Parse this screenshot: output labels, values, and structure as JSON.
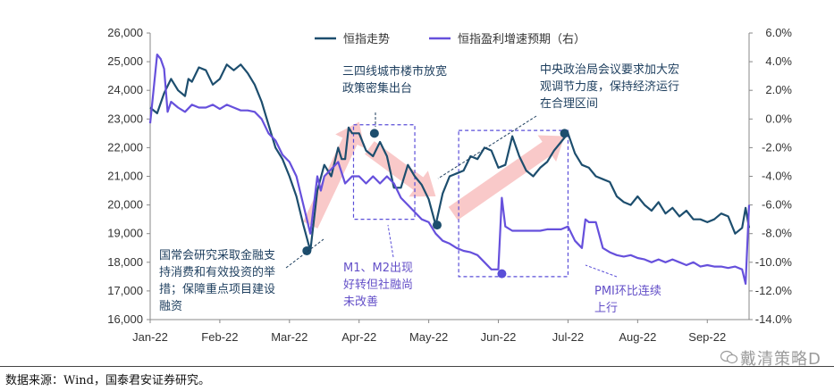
{
  "chart_data": {
    "type": "line",
    "title": "",
    "legend": {
      "placement": "top-right"
    },
    "x_ticks": [
      "Jan-22",
      "Feb-22",
      "Mar-22",
      "Apr-22",
      "May-22",
      "Jun-22",
      "Jul-22",
      "Aug-22",
      "Sep-22"
    ],
    "y_left": {
      "ticks": [
        "26,000",
        "25,000",
        "24,000",
        "23,000",
        "22,000",
        "21,000",
        "20,000",
        "19,000",
        "18,000",
        "17,000",
        "16,000"
      ],
      "range": [
        16000,
        26000
      ]
    },
    "y_right": {
      "ticks": [
        "6.0%",
        "4.0%",
        "2.0%",
        "0.0%",
        "-2.0%",
        "-4.0%",
        "-6.0%",
        "-8.0%",
        "-10.0%",
        "-12.0%",
        "-14.0%"
      ],
      "range": [
        -14,
        6
      ]
    },
    "series": [
      {
        "name": "恒指走势",
        "axis": "left",
        "color": "#1d4e6e",
        "x_months": [
          0.0,
          0.1,
          0.2,
          0.3,
          0.4,
          0.5,
          0.55,
          0.6,
          0.7,
          0.8,
          0.9,
          1.0,
          1.1,
          1.2,
          1.3,
          1.4,
          1.5,
          1.6,
          1.7,
          1.8,
          1.9,
          2.0,
          2.1,
          2.2,
          2.3,
          2.4,
          2.5,
          2.6,
          2.7,
          2.75,
          2.8,
          2.85,
          2.9,
          3.0,
          3.1,
          3.2,
          3.3,
          3.4,
          3.5,
          3.6,
          3.7,
          3.8,
          3.9,
          4.0,
          4.1,
          4.2,
          4.3,
          4.4,
          4.5,
          4.6,
          4.7,
          4.8,
          4.9,
          5.0,
          5.1,
          5.2,
          5.3,
          5.4,
          5.5,
          5.6,
          5.7,
          5.8,
          5.9,
          6.0,
          6.1,
          6.2,
          6.3,
          6.4,
          6.5,
          6.6,
          6.7,
          6.8,
          6.9,
          7.0,
          7.1,
          7.2,
          7.3,
          7.4,
          7.5,
          7.6,
          7.7,
          7.8,
          7.9,
          8.0,
          8.1,
          8.2,
          8.3,
          8.4,
          8.5,
          8.55,
          8.6
        ],
        "values": [
          23400,
          23200,
          23900,
          24400,
          24000,
          23800,
          24400,
          24300,
          24800,
          24700,
          24200,
          24400,
          24900,
          24700,
          24900,
          24600,
          24200,
          23600,
          22800,
          22000,
          21600,
          21000,
          20300,
          19300,
          18400,
          20500,
          21400,
          21000,
          22000,
          21600,
          21600,
          22700,
          22500,
          22500,
          21900,
          21700,
          22200,
          21700,
          20600,
          20600,
          21400,
          21000,
          20700,
          20200,
          19300,
          20400,
          21000,
          21100,
          21200,
          21700,
          21600,
          22000,
          21900,
          21300,
          21400,
          22400,
          21700,
          21200,
          21000,
          21300,
          21500,
          21900,
          22200,
          22500,
          21800,
          21400,
          21300,
          21000,
          20900,
          20800,
          20300,
          20100,
          20000,
          20300,
          20000,
          19800,
          20100,
          19700,
          19900,
          19600,
          19800,
          19500,
          19500,
          19400,
          19500,
          19700,
          19600,
          19000,
          19200,
          19900,
          19200
        ]
      },
      {
        "name": "恒指盈利增速预期（右）",
        "axis": "right",
        "color": "#6650dc",
        "x_months": [
          0.0,
          0.1,
          0.15,
          0.2,
          0.25,
          0.3,
          0.4,
          0.5,
          0.6,
          0.7,
          0.8,
          0.9,
          1.0,
          1.1,
          1.2,
          1.3,
          1.4,
          1.5,
          1.6,
          1.7,
          1.8,
          1.9,
          2.0,
          2.1,
          2.2,
          2.3,
          2.4,
          2.45,
          2.5,
          2.6,
          2.7,
          2.8,
          2.9,
          3.0,
          3.1,
          3.2,
          3.3,
          3.4,
          3.5,
          3.6,
          3.7,
          3.8,
          3.9,
          4.0,
          4.1,
          4.2,
          4.3,
          4.4,
          4.5,
          4.6,
          4.7,
          4.8,
          4.9,
          5.0,
          5.05,
          5.1,
          5.2,
          5.3,
          5.4,
          5.5,
          5.6,
          5.7,
          5.8,
          5.9,
          6.0,
          6.1,
          6.2,
          6.25,
          6.3,
          6.4,
          6.5,
          6.6,
          6.7,
          6.8,
          6.9,
          7.0,
          7.1,
          7.2,
          7.3,
          7.4,
          7.5,
          7.6,
          7.7,
          7.8,
          7.9,
          8.0,
          8.1,
          8.2,
          8.3,
          8.4,
          8.5,
          8.55,
          8.6
        ],
        "values": [
          -0.3,
          4.5,
          4.2,
          3.5,
          0.5,
          1.2,
          0.8,
          0.5,
          1.0,
          0.8,
          0.8,
          1.0,
          0.7,
          1.0,
          0.8,
          0.6,
          0.6,
          0.5,
          0.0,
          -1.0,
          -1.5,
          -2.5,
          -3.0,
          -4.0,
          -6.0,
          -8.0,
          -4.0,
          -5.0,
          -4.0,
          -3.5,
          -3.0,
          -4.5,
          -4.0,
          -4.0,
          -4.5,
          -4.0,
          -4.5,
          -4.0,
          -4.5,
          -5.5,
          -6.0,
          -6.5,
          -7.0,
          -7.2,
          -8.0,
          -8.5,
          -8.7,
          -9.0,
          -9.2,
          -9.3,
          -9.5,
          -10.0,
          -10.5,
          -10.5,
          -5.5,
          -7.5,
          -7.8,
          -7.8,
          -7.8,
          -7.8,
          -7.8,
          -7.7,
          -7.7,
          -7.7,
          -7.5,
          -8.5,
          -9.0,
          -7.0,
          -7.2,
          -7.2,
          -9.0,
          -9.3,
          -9.5,
          -9.6,
          -9.5,
          -9.7,
          -9.8,
          -10.0,
          -9.8,
          -10.0,
          -9.8,
          -10.0,
          -10.2,
          -10.0,
          -10.3,
          -10.2,
          -10.3,
          -10.3,
          -10.4,
          -10.3,
          -10.5,
          -11.5,
          -6.0
        ]
      }
    ],
    "annotations": {
      "a1": {
        "lines": [
          "三四线城市楼市放宽",
          "政策密集出台"
        ]
      },
      "a2": {
        "lines": [
          "中央政治局会议要求加大宏",
          "观调节力度，保持经济运行",
          "在合理区间"
        ]
      },
      "a3": {
        "lines": [
          "国常会研究采取金融支",
          "持消费和有效投资的举",
          "措；保障重点项目建设",
          "融资"
        ]
      },
      "a4": {
        "lines": [
          "M1、M2出现",
          "好转但社融尚",
          "未改善"
        ]
      },
      "a5": {
        "lines": [
          "PMI环比连续",
          "上行"
        ]
      }
    },
    "markers": [
      {
        "axis": "left",
        "x": 2.25,
        "y": 18400
      },
      {
        "axis": "left",
        "x": 3.22,
        "y": 22500
      },
      {
        "axis": "left",
        "x": 4.12,
        "y": 19300
      },
      {
        "axis": "left",
        "x": 5.95,
        "y": 22500
      },
      {
        "axis": "right",
        "x": 5.05,
        "y": -10.8
      }
    ]
  },
  "footer": {
    "source": "数据来源：Wind，国泰君安证券研究。",
    "watermark": "戴清策略D"
  }
}
